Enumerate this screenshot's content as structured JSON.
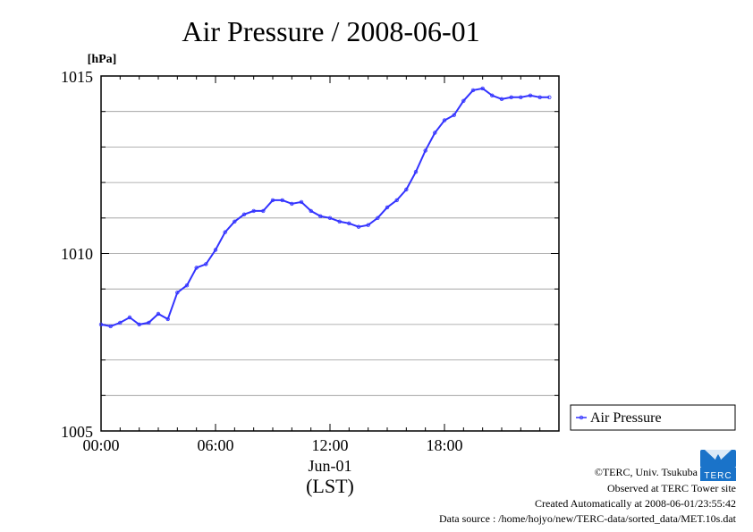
{
  "chart_data": {
    "type": "line",
    "title": "Air Pressure / 2008-06-01",
    "ylabel": "[hPa]",
    "xlabel": "(LST)",
    "date_label": "Jun-01",
    "x_ticks": [
      "00:00",
      "06:00",
      "12:00",
      "18:00"
    ],
    "y_ticks": [
      "1005",
      "1010",
      "1015"
    ],
    "ylim": [
      1005,
      1015
    ],
    "xlim_hours": [
      0,
      24
    ],
    "grid": true,
    "legend": "right",
    "series": [
      {
        "name": "Air Pressure",
        "color": "#3333ff",
        "x": [
          0,
          0.5,
          1,
          1.5,
          2,
          2.5,
          3,
          3.5,
          4,
          4.5,
          5,
          5.5,
          6,
          6.5,
          7,
          7.5,
          8,
          8.5,
          9,
          9.5,
          10,
          10.5,
          11,
          11.5,
          12,
          12.5,
          13,
          13.5,
          14,
          14.5,
          15,
          15.5,
          16,
          16.5,
          17,
          17.5,
          18,
          18.5,
          19,
          19.5,
          20,
          20.5,
          21,
          21.5,
          22,
          22.5,
          23,
          23.5
        ],
        "y": [
          1008.0,
          1007.95,
          1008.05,
          1008.2,
          1008.0,
          1008.05,
          1008.3,
          1008.15,
          1008.9,
          1009.1,
          1009.6,
          1009.7,
          1010.1,
          1010.6,
          1010.9,
          1011.1,
          1011.2,
          1011.2,
          1011.5,
          1011.5,
          1011.4,
          1011.45,
          1011.2,
          1011.05,
          1011.0,
          1010.9,
          1010.85,
          1010.75,
          1010.8,
          1011.0,
          1011.3,
          1011.5,
          1011.8,
          1012.3,
          1012.9,
          1013.4,
          1013.75,
          1013.9,
          1014.3,
          1014.6,
          1014.65,
          1014.45,
          1014.35,
          1014.4,
          1014.4,
          1014.45,
          1014.4,
          1014.4
        ]
      }
    ]
  },
  "footer": {
    "credit": "©TERC, Univ. Tsukuba",
    "observed": "Observed at TERC Tower site",
    "created": "Created Automatically at 2008-06-01/23:55:42",
    "source": "Data source : /home/hojyo/new/TERC-data/sorted_data/MET.10s.dat",
    "logo_text": "TERC"
  },
  "colors": {
    "series": "#3333ff",
    "logo": "#1a73c9",
    "grid": "#999999"
  }
}
